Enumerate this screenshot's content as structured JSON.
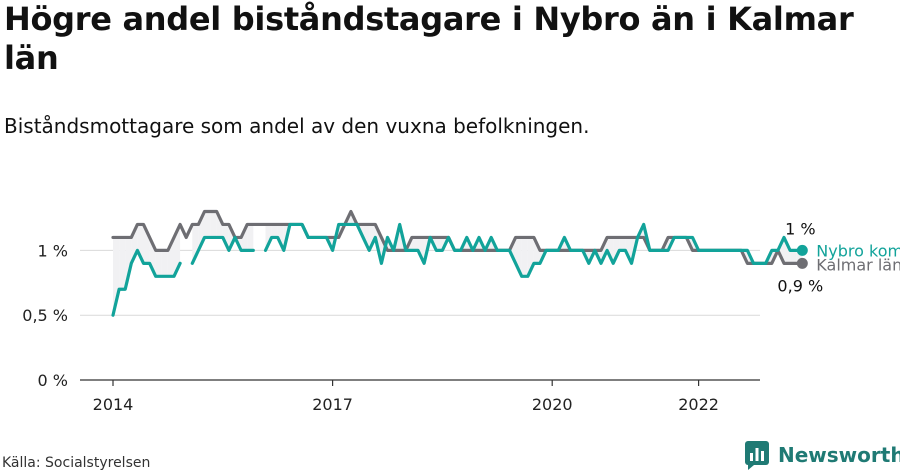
{
  "title": "Högre andel biståndstagare i Nybro än i Kalmar län",
  "subtitle": "Biståndsmottagare som andel av den vuxna befolkningen.",
  "source": "Källa: Socialstyrelsen",
  "brand": "Newsworthy",
  "chart_data": {
    "type": "line",
    "x_unit": "month",
    "x_start": "2014-01",
    "ylim": [
      0,
      1.3
    ],
    "y_ticks": [
      0,
      0.5,
      1
    ],
    "y_tick_labels": [
      "0 %",
      "0,5 %",
      "1 %"
    ],
    "x_ticks": [
      2014,
      2017,
      2020,
      2022
    ],
    "x_tick_labels": [
      "2014",
      "2017",
      "2020",
      "2022"
    ],
    "grid": true,
    "colors": {
      "nybro": "#12a39a",
      "kalmar": "#6e6e73",
      "band": "#f1f1f3"
    },
    "series": [
      {
        "name": "Kalmar län",
        "end_label": "0,9 %",
        "values": [
          1.1,
          1.1,
          1.1,
          1.1,
          1.2,
          1.2,
          1.1,
          1.0,
          1.0,
          1.0,
          1.1,
          1.2,
          1.1,
          1.2,
          1.2,
          1.3,
          1.3,
          1.3,
          1.2,
          1.2,
          1.1,
          1.1,
          1.2,
          1.2,
          1.2,
          1.2,
          1.2,
          1.2,
          1.2,
          1.2,
          1.2,
          1.2,
          1.1,
          1.1,
          1.1,
          1.1,
          1.1,
          1.1,
          1.2,
          1.3,
          1.2,
          1.2,
          1.2,
          1.2,
          1.1,
          1.0,
          1.0,
          1.0,
          1.0,
          1.1,
          1.1,
          1.1,
          1.1,
          1.1,
          1.1,
          1.1,
          1.0,
          1.0,
          1.0,
          1.0,
          1.0,
          1.0,
          1.0,
          1.0,
          1.0,
          1.0,
          1.1,
          1.1,
          1.1,
          1.1,
          1.0,
          1.0,
          1.0,
          1.0,
          1.0,
          1.0,
          1.0,
          1.0,
          1.0,
          1.0,
          1.0,
          1.1,
          1.1,
          1.1,
          1.1,
          1.1,
          1.1,
          1.1,
          1.0,
          1.0,
          1.0,
          1.1,
          1.1,
          1.1,
          1.1,
          1.0,
          1.0,
          1.0,
          1.0,
          1.0,
          1.0,
          1.0,
          1.0,
          1.0,
          0.9,
          0.9,
          0.9,
          0.9,
          0.9,
          1.0,
          0.9,
          0.9,
          0.9,
          0.9
        ]
      },
      {
        "name": "Nybro kommun",
        "end_label": "1 %",
        "values": [
          0.5,
          0.7,
          0.7,
          0.9,
          1.0,
          0.9,
          0.9,
          0.8,
          0.8,
          0.8,
          0.8,
          0.9,
          null,
          0.9,
          1.0,
          1.1,
          1.1,
          1.1,
          1.1,
          1.0,
          1.1,
          1.0,
          1.0,
          1.0,
          null,
          1.0,
          1.1,
          1.1,
          1.0,
          1.2,
          1.2,
          1.2,
          1.1,
          1.1,
          1.1,
          1.1,
          1.0,
          1.2,
          1.2,
          1.2,
          1.2,
          1.1,
          1.0,
          1.1,
          0.9,
          1.1,
          1.0,
          1.2,
          1.0,
          1.0,
          1.0,
          0.9,
          1.1,
          1.0,
          1.0,
          1.1,
          1.0,
          1.0,
          1.1,
          1.0,
          1.1,
          1.0,
          1.1,
          1.0,
          1.0,
          1.0,
          0.9,
          0.8,
          0.8,
          0.9,
          0.9,
          1.0,
          1.0,
          1.0,
          1.1,
          1.0,
          1.0,
          1.0,
          0.9,
          1.0,
          0.9,
          1.0,
          0.9,
          1.0,
          1.0,
          0.9,
          1.1,
          1.2,
          1.0,
          1.0,
          1.0,
          1.0,
          1.1,
          1.1,
          1.1,
          1.1,
          1.0,
          1.0,
          1.0,
          1.0,
          1.0,
          1.0,
          1.0,
          1.0,
          1.0,
          0.9,
          0.9,
          0.9,
          1.0,
          1.0,
          1.1,
          1.0,
          1.0,
          1.0
        ]
      }
    ]
  }
}
